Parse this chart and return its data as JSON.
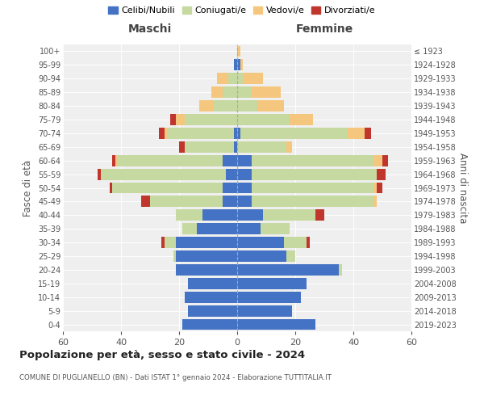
{
  "age_groups": [
    "0-4",
    "5-9",
    "10-14",
    "15-19",
    "20-24",
    "25-29",
    "30-34",
    "35-39",
    "40-44",
    "45-49",
    "50-54",
    "55-59",
    "60-64",
    "65-69",
    "70-74",
    "75-79",
    "80-84",
    "85-89",
    "90-94",
    "95-99",
    "100+"
  ],
  "birth_years": [
    "2019-2023",
    "2014-2018",
    "2009-2013",
    "2004-2008",
    "1999-2003",
    "1994-1998",
    "1989-1993",
    "1984-1988",
    "1979-1983",
    "1974-1978",
    "1969-1973",
    "1964-1968",
    "1959-1963",
    "1954-1958",
    "1949-1953",
    "1944-1948",
    "1939-1943",
    "1934-1938",
    "1929-1933",
    "1924-1928",
    "≤ 1923"
  ],
  "colors": {
    "celibi": "#4472C4",
    "coniugati": "#c5d9a0",
    "vedovi": "#f5c77e",
    "divorziati": "#c0362c"
  },
  "maschi": {
    "celibi": [
      19,
      17,
      18,
      17,
      21,
      21,
      21,
      14,
      12,
      5,
      5,
      4,
      5,
      1,
      1,
      0,
      0,
      0,
      0,
      1,
      0
    ],
    "coniugati": [
      0,
      0,
      0,
      0,
      0,
      1,
      4,
      5,
      9,
      25,
      38,
      43,
      36,
      17,
      23,
      18,
      8,
      5,
      3,
      0,
      0
    ],
    "vedovi": [
      0,
      0,
      0,
      0,
      0,
      0,
      0,
      0,
      0,
      0,
      0,
      0,
      1,
      0,
      1,
      3,
      5,
      4,
      4,
      0,
      0
    ],
    "divorziati": [
      0,
      0,
      0,
      0,
      0,
      0,
      1,
      0,
      0,
      3,
      1,
      1,
      1,
      2,
      2,
      2,
      0,
      0,
      0,
      0,
      0
    ]
  },
  "femmine": {
    "celibi": [
      27,
      19,
      22,
      24,
      35,
      17,
      16,
      8,
      9,
      5,
      5,
      5,
      5,
      0,
      1,
      0,
      0,
      0,
      0,
      1,
      0
    ],
    "coniugati": [
      0,
      0,
      0,
      0,
      1,
      3,
      8,
      10,
      18,
      42,
      42,
      43,
      42,
      17,
      37,
      18,
      7,
      5,
      2,
      0,
      0
    ],
    "vedovi": [
      0,
      0,
      0,
      0,
      0,
      0,
      0,
      0,
      0,
      1,
      1,
      0,
      3,
      2,
      6,
      8,
      9,
      10,
      7,
      1,
      1
    ],
    "divorziati": [
      0,
      0,
      0,
      0,
      0,
      0,
      1,
      0,
      3,
      0,
      2,
      3,
      2,
      0,
      2,
      0,
      0,
      0,
      0,
      0,
      0
    ]
  },
  "xlim": 60,
  "title": "Popolazione per età, sesso e stato civile - 2024",
  "subtitle": "COMUNE DI PUGLIANELLO (BN) - Dati ISTAT 1° gennaio 2024 - Elaborazione TUTTITALIA.IT",
  "ylabel_left": "Fasce di età",
  "ylabel_right": "Anni di nascita",
  "xlabel_left": "Maschi",
  "xlabel_right": "Femmine",
  "bg_color": "#efefef",
  "grid_color": "#cccccc"
}
